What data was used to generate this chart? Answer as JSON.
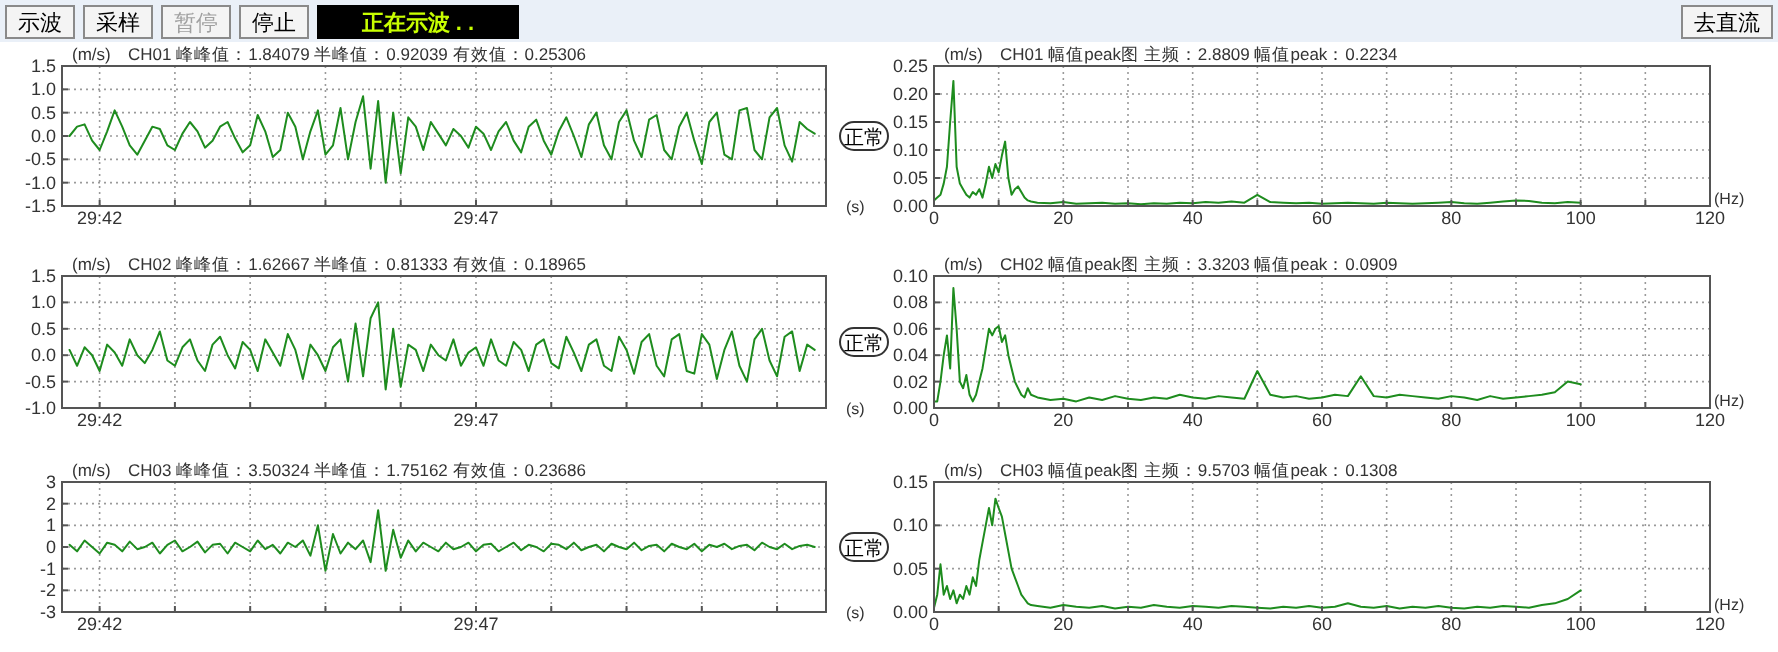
{
  "chart_data": [
    {
      "type": "other",
      "annotations": [
        "示波",
        "采样",
        "暂停",
        "停止",
        "正在示波 . .",
        "去直流"
      ]
    },
    {
      "type": "line",
      "title": "CH01 峰峰值：1.84079 半峰值：0.92039 有效值：0.25306",
      "ylabel": "(m/s)",
      "xlabel": "(s)",
      "annotations": [
        "正常"
      ],
      "grid": true,
      "xlim": [
        1781.5,
        1791.65
      ],
      "ylim": [
        -1.5,
        1.5
      ],
      "xticks": [
        {
          "value": 1782,
          "label": "29:42"
        },
        {
          "value": 1783,
          "label": null
        },
        {
          "value": 1784,
          "label": null
        },
        {
          "value": 1785,
          "label": null
        },
        {
          "value": 1786,
          "label": null
        },
        {
          "value": 1787,
          "label": "29:47"
        },
        {
          "value": 1788,
          "label": null
        },
        {
          "value": 1789,
          "label": null
        },
        {
          "value": 1790,
          "label": null
        },
        {
          "value": 1791,
          "label": null
        }
      ],
      "yticks": [
        {
          "value": -1.5,
          "label": "-1.5"
        },
        {
          "value": -1,
          "label": "-1.0"
        },
        {
          "value": -0.5,
          "label": "-0.5"
        },
        {
          "value": 0,
          "label": "0.0"
        },
        {
          "value": 0.5,
          "label": "0.5"
        },
        {
          "value": 1,
          "label": "1.0"
        },
        {
          "value": 1.5,
          "label": "1.5"
        }
      ],
      "x": [
        1781.6,
        1781.7,
        1781.8,
        1781.9,
        1782.0,
        1782.1,
        1782.2,
        1782.3,
        1782.4,
        1782.5,
        1782.6,
        1782.7,
        1782.8,
        1782.9,
        1783.0,
        1783.1,
        1783.2,
        1783.3,
        1783.4,
        1783.5,
        1783.6,
        1783.7,
        1783.8,
        1783.9,
        1784.0,
        1784.1,
        1784.2,
        1784.3,
        1784.4,
        1784.5,
        1784.6,
        1784.7,
        1784.8,
        1784.9,
        1785.0,
        1785.1,
        1785.2,
        1785.3,
        1785.4,
        1785.5,
        1785.6,
        1785.7,
        1785.8,
        1785.9,
        1786.0,
        1786.1,
        1786.2,
        1786.3,
        1786.4,
        1786.5,
        1786.6,
        1786.7,
        1786.8,
        1786.9,
        1787.0,
        1787.1,
        1787.2,
        1787.3,
        1787.4,
        1787.5,
        1787.6,
        1787.7,
        1787.8,
        1787.9,
        1788.0,
        1788.1,
        1788.2,
        1788.3,
        1788.4,
        1788.5,
        1788.6,
        1788.7,
        1788.8,
        1788.9,
        1789.0,
        1789.1,
        1789.2,
        1789.3,
        1789.4,
        1789.5,
        1789.6,
        1789.7,
        1789.8,
        1789.9,
        1790.0,
        1790.1,
        1790.2,
        1790.3,
        1790.4,
        1790.5,
        1790.6,
        1790.7,
        1790.8,
        1790.9,
        1791.0,
        1791.1,
        1791.2,
        1791.3,
        1791.4,
        1791.5
      ],
      "series": [
        {
          "color": "#1e8c1e",
          "values": [
            0.0,
            0.2,
            0.25,
            -0.1,
            -0.3,
            0.1,
            0.55,
            0.2,
            -0.2,
            -0.4,
            -0.1,
            0.2,
            0.15,
            -0.2,
            -0.3,
            0.05,
            0.3,
            0.1,
            -0.25,
            -0.1,
            0.2,
            0.3,
            -0.05,
            -0.35,
            -0.2,
            0.45,
            0.1,
            -0.45,
            -0.3,
            0.5,
            0.2,
            -0.5,
            0.1,
            0.55,
            -0.4,
            -0.2,
            0.6,
            -0.5,
            0.3,
            0.85,
            -0.7,
            0.75,
            -1.0,
            0.5,
            -0.8,
            0.4,
            0.2,
            -0.3,
            0.3,
            0.05,
            -0.2,
            0.15,
            0.0,
            -0.25,
            0.2,
            0.05,
            -0.3,
            0.1,
            0.3,
            -0.1,
            -0.35,
            0.2,
            0.35,
            -0.1,
            -0.4,
            0.1,
            0.4,
            0.0,
            -0.45,
            0.25,
            0.5,
            -0.2,
            -0.5,
            0.3,
            0.55,
            -0.1,
            -0.45,
            0.35,
            0.45,
            -0.3,
            -0.5,
            0.2,
            0.5,
            -0.1,
            -0.6,
            0.3,
            0.5,
            -0.4,
            -0.5,
            0.55,
            0.6,
            -0.3,
            -0.5,
            0.4,
            0.6,
            -0.2,
            -0.55,
            0.3,
            0.15,
            0.05
          ]
        }
      ]
    },
    {
      "type": "line",
      "title": "CH01 幅值peak图 主频：2.8809 幅值peak：0.2234",
      "ylabel": "(m/s)",
      "xlabel": "(Hz)",
      "grid": true,
      "xlim": [
        0,
        120
      ],
      "ylim": [
        0,
        0.25
      ],
      "xticks": [
        0,
        {
          "value": 10,
          "label": null
        },
        20,
        {
          "value": 30,
          "label": null
        },
        40,
        {
          "value": 50,
          "label": null
        },
        60,
        {
          "value": 70,
          "label": null
        },
        80,
        {
          "value": 90,
          "label": null
        },
        100,
        {
          "value": 110,
          "label": null
        },
        120
      ],
      "yticks": [
        {
          "value": 0,
          "label": "0.00"
        },
        {
          "value": 0.05,
          "label": "0.05"
        },
        {
          "value": 0.1,
          "label": "0.10"
        },
        {
          "value": 0.15,
          "label": "0.15"
        },
        {
          "value": 0.2,
          "label": "0.20"
        },
        {
          "value": 0.25,
          "label": "0.25"
        }
      ],
      "x": [
        0,
        0.5,
        1,
        1.5,
        2,
        2.5,
        3,
        3.5,
        4,
        4.5,
        5,
        5.5,
        6,
        6.5,
        7,
        7.5,
        8,
        8.5,
        9,
        9.5,
        10,
        10.5,
        11,
        11.5,
        12,
        12.5,
        13,
        13.5,
        14,
        14.5,
        15,
        16,
        18,
        20,
        22,
        24,
        26,
        28,
        30,
        32,
        34,
        36,
        38,
        40,
        42,
        44,
        46,
        48,
        50,
        52,
        54,
        56,
        58,
        60,
        62,
        64,
        66,
        68,
        70,
        72,
        74,
        76,
        78,
        80,
        82,
        84,
        86,
        88,
        90,
        92,
        94,
        96,
        98,
        100
      ],
      "series": [
        {
          "color": "#1e8c1e",
          "values": [
            0.01,
            0.015,
            0.02,
            0.04,
            0.07,
            0.15,
            0.2234,
            0.07,
            0.04,
            0.03,
            0.02,
            0.015,
            0.025,
            0.02,
            0.03,
            0.015,
            0.04,
            0.07,
            0.05,
            0.075,
            0.06,
            0.09,
            0.115,
            0.05,
            0.02,
            0.03,
            0.035,
            0.025,
            0.015,
            0.01,
            0.008,
            0.006,
            0.005,
            0.007,
            0.004,
            0.005,
            0.006,
            0.004,
            0.005,
            0.003,
            0.005,
            0.004,
            0.006,
            0.005,
            0.007,
            0.006,
            0.008,
            0.006,
            0.02,
            0.007,
            0.006,
            0.005,
            0.006,
            0.004,
            0.005,
            0.006,
            0.005,
            0.004,
            0.006,
            0.005,
            0.004,
            0.005,
            0.006,
            0.007,
            0.005,
            0.004,
            0.006,
            0.008,
            0.01,
            0.009,
            0.006,
            0.005,
            0.007,
            0.006
          ]
        }
      ]
    },
    {
      "type": "line",
      "title": "CH02 峰峰值：1.62667 半峰值：0.81333 有效值：0.18965",
      "ylabel": "(m/s)",
      "xlabel": "(s)",
      "annotations": [
        "正常"
      ],
      "grid": true,
      "xlim": [
        1781.5,
        1791.65
      ],
      "ylim": [
        -1,
        1.5
      ],
      "xticks": [
        {
          "value": 1782,
          "label": "29:42"
        },
        {
          "value": 1783,
          "label": null
        },
        {
          "value": 1784,
          "label": null
        },
        {
          "value": 1785,
          "label": null
        },
        {
          "value": 1786,
          "label": null
        },
        {
          "value": 1787,
          "label": "29:47"
        },
        {
          "value": 1788,
          "label": null
        },
        {
          "value": 1789,
          "label": null
        },
        {
          "value": 1790,
          "label": null
        },
        {
          "value": 1791,
          "label": null
        }
      ],
      "yticks": [
        {
          "value": -1,
          "label": "-1.0"
        },
        {
          "value": -0.5,
          "label": "-0.5"
        },
        {
          "value": 0,
          "label": "0.0"
        },
        {
          "value": 0.5,
          "label": "0.5"
        },
        {
          "value": 1,
          "label": "1.0"
        },
        {
          "value": 1.5,
          "label": "1.5"
        }
      ],
      "x": [
        1781.6,
        1781.7,
        1781.8,
        1781.9,
        1782.0,
        1782.1,
        1782.2,
        1782.3,
        1782.4,
        1782.5,
        1782.6,
        1782.7,
        1782.8,
        1782.9,
        1783.0,
        1783.1,
        1783.2,
        1783.3,
        1783.4,
        1783.5,
        1783.6,
        1783.7,
        1783.8,
        1783.9,
        1784.0,
        1784.1,
        1784.2,
        1784.3,
        1784.4,
        1784.5,
        1784.6,
        1784.7,
        1784.8,
        1784.9,
        1785.0,
        1785.1,
        1785.2,
        1785.3,
        1785.4,
        1785.5,
        1785.6,
        1785.7,
        1785.8,
        1785.9,
        1786.0,
        1786.1,
        1786.2,
        1786.3,
        1786.4,
        1786.5,
        1786.6,
        1786.7,
        1786.8,
        1786.9,
        1787.0,
        1787.1,
        1787.2,
        1787.3,
        1787.4,
        1787.5,
        1787.6,
        1787.7,
        1787.8,
        1787.9,
        1788.0,
        1788.1,
        1788.2,
        1788.3,
        1788.4,
        1788.5,
        1788.6,
        1788.7,
        1788.8,
        1788.9,
        1789.0,
        1789.1,
        1789.2,
        1789.3,
        1789.4,
        1789.5,
        1789.6,
        1789.7,
        1789.8,
        1789.9,
        1790.0,
        1790.1,
        1790.2,
        1790.3,
        1790.4,
        1790.5,
        1790.6,
        1790.7,
        1790.8,
        1790.9,
        1791.0,
        1791.1,
        1791.2,
        1791.3,
        1791.4,
        1791.5
      ],
      "series": [
        {
          "color": "#1e8c1e",
          "values": [
            0.1,
            -0.2,
            0.15,
            0.0,
            -0.3,
            0.2,
            0.05,
            -0.2,
            0.3,
            0.0,
            -0.15,
            0.1,
            0.45,
            -0.1,
            -0.2,
            0.15,
            0.3,
            -0.1,
            -0.3,
            0.2,
            0.35,
            0.0,
            -0.25,
            0.25,
            0.1,
            -0.3,
            0.3,
            0.05,
            -0.2,
            0.4,
            0.1,
            -0.45,
            0.2,
            0.0,
            -0.3,
            0.15,
            0.3,
            -0.5,
            0.6,
            -0.4,
            0.7,
            1.0,
            -0.65,
            0.5,
            -0.6,
            0.2,
            0.1,
            -0.3,
            0.2,
            0.0,
            -0.1,
            0.3,
            -0.2,
            0.05,
            0.15,
            -0.2,
            0.3,
            -0.1,
            -0.2,
            0.25,
            0.1,
            -0.3,
            0.2,
            0.3,
            -0.15,
            -0.25,
            0.35,
            0.05,
            -0.3,
            0.2,
            0.3,
            -0.2,
            -0.3,
            0.35,
            0.1,
            -0.35,
            0.25,
            0.4,
            -0.2,
            -0.4,
            0.3,
            0.4,
            -0.3,
            -0.35,
            0.4,
            0.2,
            -0.45,
            0.1,
            0.45,
            -0.2,
            -0.5,
            0.3,
            0.5,
            -0.1,
            -0.4,
            0.35,
            0.45,
            -0.3,
            0.2,
            0.1
          ]
        }
      ]
    },
    {
      "type": "line",
      "title": "CH02 幅值peak图 主频：3.3203 幅值peak：0.0909",
      "ylabel": "(m/s)",
      "xlabel": "(Hz)",
      "grid": true,
      "xlim": [
        0,
        120
      ],
      "ylim": [
        0,
        0.1
      ],
      "xticks": [
        0,
        {
          "value": 10,
          "label": null
        },
        20,
        {
          "value": 30,
          "label": null
        },
        40,
        {
          "value": 50,
          "label": null
        },
        60,
        {
          "value": 70,
          "label": null
        },
        80,
        {
          "value": 90,
          "label": null
        },
        100,
        {
          "value": 110,
          "label": null
        },
        120
      ],
      "yticks": [
        {
          "value": 0,
          "label": "0.00"
        },
        {
          "value": 0.02,
          "label": "0.02"
        },
        {
          "value": 0.04,
          "label": "0.04"
        },
        {
          "value": 0.06,
          "label": "0.06"
        },
        {
          "value": 0.08,
          "label": "0.08"
        },
        {
          "value": 0.1,
          "label": "0.10"
        }
      ],
      "x": [
        0,
        0.5,
        1,
        1.5,
        2,
        2.5,
        3,
        3.5,
        4,
        4.5,
        5,
        5.5,
        6,
        6.5,
        7,
        7.5,
        8,
        8.5,
        9,
        9.5,
        10,
        10.5,
        11,
        11.5,
        12,
        12.5,
        13,
        13.5,
        14,
        14.5,
        15,
        16,
        18,
        20,
        22,
        24,
        26,
        28,
        30,
        32,
        34,
        36,
        38,
        40,
        42,
        44,
        46,
        48,
        50,
        52,
        54,
        56,
        58,
        60,
        62,
        64,
        66,
        68,
        70,
        72,
        74,
        76,
        78,
        80,
        82,
        84,
        86,
        88,
        90,
        92,
        94,
        96,
        98,
        100
      ],
      "series": [
        {
          "color": "#1e8c1e",
          "values": [
            0.005,
            0.005,
            0.02,
            0.04,
            0.055,
            0.03,
            0.0909,
            0.06,
            0.02,
            0.015,
            0.025,
            0.01,
            0.005,
            0.01,
            0.02,
            0.03,
            0.045,
            0.06,
            0.055,
            0.06,
            0.062,
            0.05,
            0.055,
            0.04,
            0.03,
            0.02,
            0.015,
            0.01,
            0.008,
            0.015,
            0.01,
            0.008,
            0.006,
            0.007,
            0.005,
            0.008,
            0.006,
            0.009,
            0.007,
            0.006,
            0.008,
            0.007,
            0.01,
            0.008,
            0.007,
            0.009,
            0.008,
            0.007,
            0.028,
            0.01,
            0.008,
            0.009,
            0.007,
            0.008,
            0.01,
            0.009,
            0.024,
            0.009,
            0.008,
            0.01,
            0.009,
            0.008,
            0.007,
            0.009,
            0.008,
            0.006,
            0.009,
            0.007,
            0.008,
            0.009,
            0.01,
            0.012,
            0.02,
            0.018
          ]
        }
      ]
    },
    {
      "type": "line",
      "title": "CH03 峰峰值：3.50324 半峰值：1.75162 有效值：0.23686",
      "ylabel": "(m/s)",
      "xlabel": "(s)",
      "annotations": [
        "正常"
      ],
      "grid": true,
      "xlim": [
        1781.5,
        1791.65
      ],
      "ylim": [
        -3,
        3
      ],
      "xticks": [
        {
          "value": 1782,
          "label": "29:42"
        },
        {
          "value": 1783,
          "label": null
        },
        {
          "value": 1784,
          "label": null
        },
        {
          "value": 1785,
          "label": null
        },
        {
          "value": 1786,
          "label": null
        },
        {
          "value": 1787,
          "label": "29:47"
        },
        {
          "value": 1788,
          "label": null
        },
        {
          "value": 1789,
          "label": null
        },
        {
          "value": 1790,
          "label": null
        },
        {
          "value": 1791,
          "label": null
        }
      ],
      "yticks": [
        -3,
        -2,
        -1,
        0,
        1,
        2,
        3
      ],
      "x": [
        1781.6,
        1781.7,
        1781.8,
        1781.9,
        1782.0,
        1782.1,
        1782.2,
        1782.3,
        1782.4,
        1782.5,
        1782.6,
        1782.7,
        1782.8,
        1782.9,
        1783.0,
        1783.1,
        1783.2,
        1783.3,
        1783.4,
        1783.5,
        1783.6,
        1783.7,
        1783.8,
        1783.9,
        1784.0,
        1784.1,
        1784.2,
        1784.3,
        1784.4,
        1784.5,
        1784.6,
        1784.7,
        1784.8,
        1784.9,
        1785.0,
        1785.1,
        1785.2,
        1785.3,
        1785.4,
        1785.5,
        1785.6,
        1785.7,
        1785.8,
        1785.9,
        1786.0,
        1786.1,
        1786.2,
        1786.3,
        1786.4,
        1786.5,
        1786.6,
        1786.7,
        1786.8,
        1786.9,
        1787.0,
        1787.1,
        1787.2,
        1787.3,
        1787.4,
        1787.5,
        1787.6,
        1787.7,
        1787.8,
        1787.9,
        1788.0,
        1788.1,
        1788.2,
        1788.3,
        1788.4,
        1788.5,
        1788.6,
        1788.7,
        1788.8,
        1788.9,
        1789.0,
        1789.1,
        1789.2,
        1789.3,
        1789.4,
        1789.5,
        1789.6,
        1789.7,
        1789.8,
        1789.9,
        1790.0,
        1790.1,
        1790.2,
        1790.3,
        1790.4,
        1790.5,
        1790.6,
        1790.7,
        1790.8,
        1790.9,
        1791.0,
        1791.1,
        1791.2,
        1791.3,
        1791.4,
        1791.5
      ],
      "series": [
        {
          "color": "#1e8c1e",
          "values": [
            0.1,
            -0.2,
            0.3,
            0.0,
            -0.3,
            0.2,
            0.1,
            -0.2,
            0.25,
            -0.1,
            0.0,
            0.2,
            -0.3,
            0.1,
            0.3,
            -0.2,
            0.0,
            0.25,
            -0.25,
            0.1,
            0.15,
            -0.3,
            0.2,
            0.0,
            -0.2,
            0.3,
            -0.1,
            0.1,
            -0.3,
            0.2,
            0.0,
            0.3,
            -0.4,
            1.0,
            -1.1,
            0.6,
            -0.3,
            0.2,
            -0.1,
            0.3,
            -0.7,
            1.7,
            -1.1,
            0.8,
            -0.5,
            0.3,
            -0.2,
            0.2,
            0.0,
            -0.2,
            0.2,
            -0.1,
            0.0,
            0.2,
            -0.2,
            0.1,
            0.15,
            -0.2,
            0.0,
            0.2,
            -0.15,
            0.1,
            0.0,
            -0.2,
            0.15,
            0.1,
            -0.1,
            0.2,
            -0.15,
            0.0,
            0.1,
            -0.2,
            0.15,
            0.0,
            -0.1,
            0.2,
            -0.15,
            0.05,
            0.1,
            -0.2,
            0.15,
            0.0,
            -0.1,
            0.15,
            -0.2,
            0.1,
            0.0,
            0.15,
            -0.1,
            0.05,
            0.1,
            -0.15,
            0.2,
            0.0,
            -0.1,
            0.15,
            -0.1,
            0.05,
            0.1,
            0.0
          ]
        }
      ]
    },
    {
      "type": "line",
      "title": "CH03 幅值peak图 主频：9.5703 幅值peak：0.1308",
      "ylabel": "(m/s)",
      "xlabel": "(Hz)",
      "grid": true,
      "xlim": [
        0,
        120
      ],
      "ylim": [
        0,
        0.15
      ],
      "xticks": [
        0,
        {
          "value": 10,
          "label": null
        },
        20,
        {
          "value": 30,
          "label": null
        },
        40,
        {
          "value": 50,
          "label": null
        },
        60,
        {
          "value": 70,
          "label": null
        },
        80,
        {
          "value": 90,
          "label": null
        },
        100,
        {
          "value": 110,
          "label": null
        },
        120
      ],
      "yticks": [
        {
          "value": 0,
          "label": "0.00"
        },
        {
          "value": 0.05,
          "label": "0.05"
        },
        {
          "value": 0.1,
          "label": "0.10"
        },
        {
          "value": 0.15,
          "label": "0.15"
        }
      ],
      "x": [
        0,
        0.5,
        1,
        1.5,
        2,
        2.5,
        3,
        3.5,
        4,
        4.5,
        5,
        5.5,
        6,
        6.5,
        7,
        7.5,
        8,
        8.5,
        9,
        9.5,
        10,
        10.5,
        11,
        11.5,
        12,
        12.5,
        13,
        13.5,
        14,
        14.5,
        15,
        16,
        18,
        20,
        22,
        24,
        26,
        28,
        30,
        32,
        34,
        36,
        38,
        40,
        42,
        44,
        46,
        48,
        50,
        52,
        54,
        56,
        58,
        60,
        62,
        64,
        66,
        68,
        70,
        72,
        74,
        76,
        78,
        80,
        82,
        84,
        86,
        88,
        90,
        92,
        94,
        96,
        98,
        100
      ],
      "series": [
        {
          "color": "#1e8c1e",
          "values": [
            0.005,
            0.02,
            0.055,
            0.02,
            0.03,
            0.015,
            0.025,
            0.01,
            0.02,
            0.015,
            0.03,
            0.02,
            0.04,
            0.03,
            0.06,
            0.08,
            0.1,
            0.12,
            0.1,
            0.1308,
            0.12,
            0.11,
            0.09,
            0.07,
            0.05,
            0.04,
            0.03,
            0.02,
            0.015,
            0.01,
            0.008,
            0.007,
            0.005,
            0.008,
            0.006,
            0.005,
            0.007,
            0.004,
            0.006,
            0.005,
            0.008,
            0.006,
            0.005,
            0.007,
            0.006,
            0.005,
            0.007,
            0.006,
            0.005,
            0.004,
            0.006,
            0.005,
            0.007,
            0.005,
            0.006,
            0.01,
            0.006,
            0.005,
            0.007,
            0.004,
            0.006,
            0.005,
            0.007,
            0.005,
            0.004,
            0.006,
            0.005,
            0.007,
            0.006,
            0.005,
            0.008,
            0.01,
            0.015,
            0.025
          ]
        }
      ]
    }
  ]
}
